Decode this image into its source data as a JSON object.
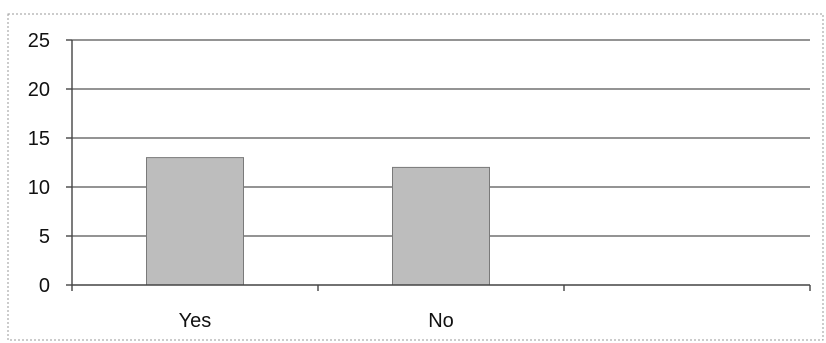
{
  "chart_data": {
    "type": "bar",
    "categories": [
      "Yes",
      "No",
      ""
    ],
    "values": [
      13,
      12,
      null
    ],
    "y_ticks": [
      "0",
      "5",
      "10",
      "15",
      "20",
      "25"
    ],
    "ylim": [
      0,
      25
    ],
    "title": "",
    "xlabel": "",
    "ylabel": "",
    "grid": true,
    "legend": "none",
    "bar_color": "#bdbdbd",
    "grid_color": "#555555"
  }
}
